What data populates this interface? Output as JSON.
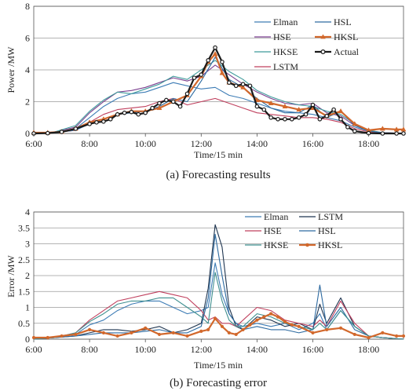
{
  "chart_data": [
    {
      "type": "line",
      "caption": "(a) Forecasting results",
      "xlabel": "Time/15 min",
      "ylabel": "Power /MW",
      "x_ticks": [
        "6:00",
        "8:00",
        "10:00",
        "12:00",
        "14:00",
        "16:00",
        "18:00"
      ],
      "y_ticks": [
        "0",
        "2",
        "4",
        "6",
        "8"
      ],
      "xlim": [
        6,
        19.25
      ],
      "ylim": [
        0,
        8
      ],
      "grid": "horizontal",
      "legend_position": "top-right",
      "colors": {
        "Elman": "#3d7cb5",
        "HSE": "#7b3f8f",
        "HKSE": "#3f9b9b",
        "LSTM": "#c0405e",
        "HSL": "#2d6aa0",
        "HKSL": "#d2682c",
        "Actual": "#1a1a1a"
      },
      "series": [
        {
          "name": "Elman",
          "x": [
            6,
            6.75,
            7.5,
            8,
            8.5,
            9,
            9.5,
            10,
            10.5,
            11,
            11.5,
            12,
            12.5,
            13,
            13.5,
            14,
            14.5,
            15,
            15.5,
            16,
            16.5,
            17,
            17.5,
            18,
            18.5,
            19.25
          ],
          "values": [
            0,
            0.05,
            0.3,
            1.0,
            1.7,
            2.2,
            2.5,
            2.6,
            2.9,
            3.2,
            3.0,
            2.8,
            2.9,
            2.4,
            2.2,
            1.9,
            1.6,
            1.4,
            1.3,
            1.2,
            1.0,
            0.8,
            0.4,
            0.15,
            0.05,
            0
          ]
        },
        {
          "name": "HSE",
          "x": [
            6,
            6.75,
            7.5,
            8,
            8.5,
            9,
            9.5,
            10,
            10.5,
            11,
            11.5,
            12,
            12.5,
            13,
            13.5,
            14,
            14.5,
            15,
            15.5,
            16,
            16.5,
            17,
            17.5,
            18,
            18.5,
            19.25
          ],
          "values": [
            0,
            0.1,
            0.4,
            1.3,
            2.0,
            2.6,
            2.7,
            2.9,
            3.2,
            3.5,
            3.3,
            3.6,
            4.3,
            3.7,
            3.1,
            2.6,
            2.2,
            1.9,
            1.8,
            1.9,
            1.3,
            1.1,
            0.5,
            0.2,
            0.05,
            0
          ]
        },
        {
          "name": "HKSE",
          "x": [
            6,
            6.75,
            7.5,
            8,
            8.5,
            9,
            9.5,
            10,
            10.5,
            11,
            11.5,
            12,
            12.5,
            13,
            13.5,
            14,
            14.5,
            15,
            15.5,
            16,
            16.5,
            17,
            17.5,
            18,
            18.5,
            19.25
          ],
          "values": [
            0,
            0.1,
            0.5,
            1.4,
            2.1,
            2.6,
            2.5,
            2.8,
            3.1,
            3.6,
            3.4,
            4.0,
            4.6,
            3.9,
            3.4,
            2.7,
            2.3,
            2.0,
            1.8,
            1.7,
            1.4,
            1.2,
            0.6,
            0.2,
            0.05,
            0
          ]
        },
        {
          "name": "LSTM",
          "x": [
            6,
            6.75,
            7.5,
            8,
            8.5,
            9,
            9.5,
            10,
            10.5,
            11,
            11.5,
            12,
            12.5,
            13,
            13.5,
            14,
            14.5,
            15,
            15.5,
            16,
            16.5,
            17,
            17.5,
            18,
            18.5,
            19.25
          ],
          "values": [
            0,
            0.05,
            0.2,
            0.7,
            1.2,
            1.5,
            1.6,
            1.7,
            2.0,
            2.2,
            1.8,
            2.0,
            2.2,
            1.9,
            1.6,
            1.3,
            1.2,
            1.1,
            1.0,
            1.0,
            0.9,
            0.7,
            0.3,
            0.1,
            0.05,
            0
          ]
        },
        {
          "name": "HSL",
          "x": [
            6,
            6.75,
            7.5,
            8,
            8.5,
            9,
            9.5,
            10,
            10.5,
            11,
            11.5,
            12,
            12.5,
            13,
            13.5,
            14,
            14.5,
            15,
            15.5,
            16,
            16.5,
            17,
            17.5,
            18,
            18.5,
            19.25
          ],
          "values": [
            0,
            0.05,
            0.2,
            0.6,
            0.9,
            1.2,
            1.3,
            1.4,
            1.7,
            2.2,
            2.0,
            3.3,
            4.8,
            3.4,
            2.9,
            2.2,
            1.6,
            1.3,
            1.3,
            1.8,
            1.0,
            1.4,
            0.5,
            0.15,
            0.05,
            0
          ]
        },
        {
          "name": "HKSL",
          "x": [
            6,
            6.5,
            7,
            7.5,
            8,
            8.5,
            9,
            9.5,
            10,
            10.5,
            11,
            11.5,
            12,
            12.25,
            12.5,
            12.75,
            13,
            13.5,
            14,
            14.5,
            15,
            15.5,
            16,
            16.5,
            17,
            17.5,
            18,
            18.5,
            19,
            19.25
          ],
          "values": [
            0.05,
            0.05,
            0.1,
            0.3,
            0.7,
            0.9,
            1.2,
            1.4,
            1.4,
            1.6,
            2.0,
            2.4,
            3.6,
            4.5,
            5.0,
            3.8,
            3.2,
            2.9,
            2.1,
            1.9,
            1.7,
            1.5,
            1.6,
            1.1,
            1.4,
            0.6,
            0.2,
            0.3,
            0.25,
            0.25
          ]
        },
        {
          "name": "Actual",
          "x": [
            6,
            6.5,
            7,
            7.5,
            8,
            8.25,
            8.5,
            8.75,
            9,
            9.25,
            9.5,
            9.75,
            10,
            10.25,
            10.5,
            10.75,
            11,
            11.25,
            11.5,
            11.75,
            12,
            12.25,
            12.5,
            12.75,
            13,
            13.25,
            13.5,
            13.75,
            14,
            14.25,
            14.5,
            14.75,
            15,
            15.25,
            15.5,
            15.75,
            16,
            16.25,
            16.5,
            16.75,
            17,
            17.25,
            17.5,
            18,
            18.5,
            19,
            19.25
          ],
          "values": [
            0,
            0.02,
            0.1,
            0.3,
            0.6,
            0.7,
            0.75,
            0.9,
            1.2,
            1.3,
            1.35,
            1.2,
            1.3,
            1.6,
            1.9,
            2.1,
            2.0,
            1.7,
            2.5,
            3.5,
            3.7,
            4.6,
            5.4,
            4.5,
            3.2,
            3.0,
            3.1,
            3.0,
            1.7,
            1.5,
            1.0,
            0.9,
            0.9,
            0.9,
            1.0,
            1.2,
            1.8,
            0.9,
            1.1,
            1.5,
            0.9,
            0.4,
            0.15,
            0.02,
            0,
            0,
            0
          ]
        }
      ]
    },
    {
      "type": "line",
      "caption": "(b) Forecasting error",
      "xlabel": "Time/15 min",
      "ylabel": "Error /MW",
      "x_ticks": [
        "6:00",
        "8:00",
        "10:00",
        "12:00",
        "14:00",
        "16:00",
        "18:00"
      ],
      "y_ticks": [
        "0",
        "0.5",
        "1",
        "1.5",
        "2",
        "2.5",
        "3",
        "3.5",
        "4"
      ],
      "xlim": [
        6,
        19.25
      ],
      "ylim": [
        0,
        4
      ],
      "grid": "horizontal",
      "legend_position": "top-right",
      "colors": {
        "Elman": "#3d7cb5",
        "LSTM": "#1f3550",
        "HSE": "#c0405e",
        "HSL": "#2d6aa0",
        "HKSE": "#3f8f8f",
        "HKSL": "#d2682c"
      },
      "series": [
        {
          "name": "Elman",
          "x": [
            6,
            6.75,
            7.5,
            8,
            8.5,
            9,
            9.5,
            10,
            10.5,
            11,
            11.5,
            12,
            12.25,
            12.5,
            12.75,
            13,
            13.25,
            13.5,
            14,
            14.5,
            15,
            15.5,
            16,
            16.25,
            16.5,
            17,
            17.5,
            18,
            18.5,
            19.25
          ],
          "values": [
            0,
            0.05,
            0.15,
            0.45,
            0.6,
            0.9,
            1.1,
            1.2,
            1.2,
            1.0,
            0.8,
            0.9,
            1.0,
            2.4,
            1.4,
            0.8,
            0.5,
            0.4,
            0.5,
            0.4,
            0.5,
            0.3,
            0.5,
            0.8,
            0.3,
            0.9,
            0.4,
            0.1,
            0.05,
            0
          ]
        },
        {
          "name": "LSTM",
          "x": [
            6,
            6.75,
            7.5,
            8,
            8.5,
            9,
            9.5,
            10,
            10.5,
            11,
            11.5,
            12,
            12.25,
            12.5,
            12.75,
            13,
            13.25,
            13.5,
            14,
            14.5,
            15,
            15.5,
            16,
            16.25,
            16.5,
            17,
            17.5,
            18,
            18.5,
            19.25
          ],
          "values": [
            0,
            0.05,
            0.1,
            0.2,
            0.3,
            0.3,
            0.25,
            0.3,
            0.4,
            0.2,
            0.3,
            0.5,
            1.6,
            3.6,
            2.9,
            1.0,
            0.4,
            0.3,
            0.7,
            0.6,
            0.4,
            0.5,
            0.3,
            1.1,
            0.5,
            1.3,
            0.4,
            0.1,
            0.05,
            0
          ]
        },
        {
          "name": "HSE",
          "x": [
            6,
            6.75,
            7.5,
            8,
            8.5,
            9,
            9.5,
            10,
            10.5,
            11,
            11.5,
            12,
            12.25,
            12.5,
            12.75,
            13,
            13.25,
            13.5,
            14,
            14.5,
            15,
            15.5,
            16,
            16.25,
            16.5,
            17,
            17.5,
            18,
            18.5,
            19.25
          ],
          "values": [
            0,
            0.05,
            0.2,
            0.6,
            0.9,
            1.2,
            1.3,
            1.4,
            1.5,
            1.4,
            1.3,
            0.9,
            0.6,
            0.7,
            0.5,
            0.5,
            0.4,
            0.6,
            1.0,
            0.9,
            0.6,
            0.5,
            0.4,
            0.6,
            0.4,
            1.2,
            0.5,
            0.1,
            0.05,
            0
          ]
        },
        {
          "name": "HSL",
          "x": [
            6,
            6.75,
            7.5,
            8,
            8.5,
            9,
            9.5,
            10,
            10.5,
            11,
            11.5,
            12,
            12.25,
            12.5,
            12.75,
            13,
            13.25,
            13.5,
            14,
            14.5,
            15,
            15.5,
            16,
            16.25,
            16.5,
            17,
            17.5,
            18,
            18.5,
            19.25
          ],
          "values": [
            0,
            0.05,
            0.1,
            0.15,
            0.2,
            0.2,
            0.2,
            0.25,
            0.3,
            0.2,
            0.2,
            0.4,
            1.3,
            3.3,
            2.0,
            0.8,
            0.5,
            0.3,
            0.4,
            0.3,
            0.3,
            0.2,
            0.3,
            1.7,
            0.4,
            1.0,
            0.3,
            0.1,
            0.05,
            0
          ]
        },
        {
          "name": "HKSE",
          "x": [
            6,
            6.75,
            7.5,
            8,
            8.5,
            9,
            9.5,
            10,
            10.5,
            11,
            11.5,
            12,
            12.25,
            12.5,
            12.75,
            13,
            13.25,
            13.5,
            14,
            14.5,
            15,
            15.5,
            16,
            16.25,
            16.5,
            17,
            17.5,
            18,
            18.5,
            19.25
          ],
          "values": [
            0,
            0.05,
            0.2,
            0.55,
            0.8,
            1.1,
            1.2,
            1.2,
            1.3,
            1.3,
            1.0,
            0.7,
            0.5,
            2.1,
            1.2,
            0.6,
            0.4,
            0.4,
            0.8,
            0.7,
            0.5,
            0.4,
            0.3,
            0.5,
            0.3,
            0.9,
            0.4,
            0.1,
            0.05,
            0
          ]
        },
        {
          "name": "HKSL",
          "x": [
            6,
            6.5,
            7,
            7.5,
            8,
            8.5,
            9,
            9.5,
            10,
            10.5,
            11,
            11.5,
            12,
            12.25,
            12.5,
            12.75,
            13,
            13.25,
            13.5,
            13.75,
            14,
            14.25,
            14.5,
            14.75,
            15,
            15.25,
            15.5,
            16,
            16.5,
            17,
            17.5,
            18,
            18.5,
            19,
            19.25
          ],
          "values": [
            0.05,
            0.05,
            0.1,
            0.15,
            0.3,
            0.2,
            0.1,
            0.2,
            0.35,
            0.15,
            0.2,
            0.1,
            0.25,
            0.3,
            0.65,
            0.4,
            0.2,
            0.15,
            0.3,
            0.45,
            0.6,
            0.7,
            0.8,
            0.7,
            0.55,
            0.45,
            0.4,
            0.2,
            0.3,
            0.35,
            0.15,
            0.05,
            0.2,
            0.1,
            0.1
          ]
        }
      ]
    }
  ]
}
